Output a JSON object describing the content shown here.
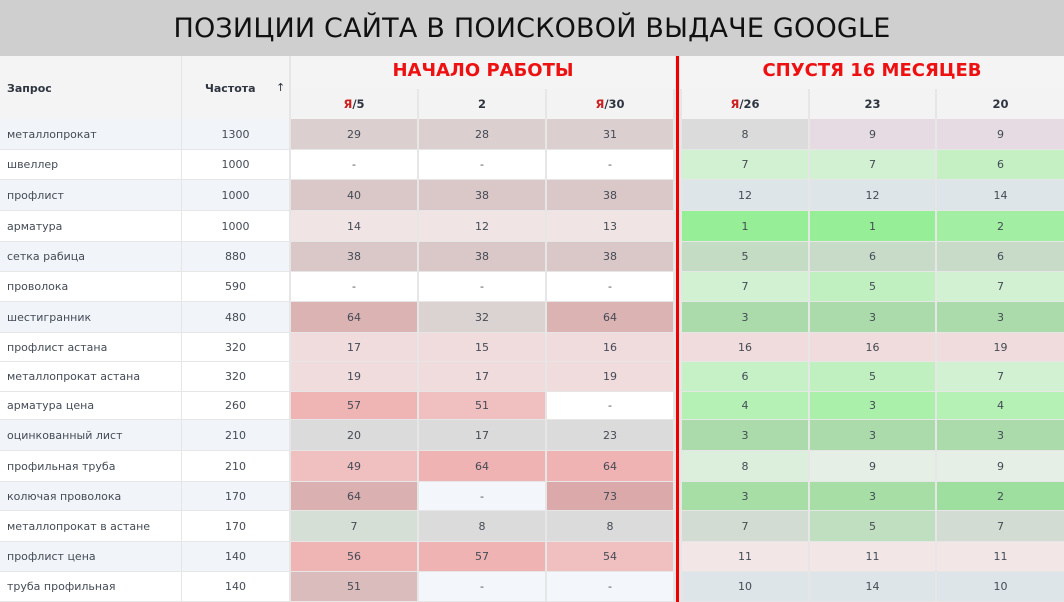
{
  "banner": {
    "title": "ПОЗИЦИИ САЙТА В ПОИСКОВОЙ ВЫДАЧЕ GOOGLE"
  },
  "table": {
    "headers": {
      "query": "Запрос",
      "frequency": "Частота",
      "sort_icon": "↑"
    },
    "sections": [
      {
        "title": "НАЧАЛО РАБОТЫ",
        "title_color": "#ee1111",
        "columns": [
          {
            "prefix": "Я",
            "label": "/5"
          },
          {
            "prefix": "",
            "label": "2"
          },
          {
            "prefix": "Я",
            "label": "/30"
          }
        ]
      },
      {
        "title": "СПУСТЯ 16 МЕСЯЦЕВ",
        "title_color": "#ee1111",
        "columns": [
          {
            "prefix": "Я",
            "label": "/26"
          },
          {
            "prefix": "",
            "label": "23"
          },
          {
            "prefix": "",
            "label": "20"
          }
        ]
      }
    ],
    "rows": [
      {
        "query": "металлопрокат",
        "freq": "1300",
        "before": [
          "29",
          "28",
          "31"
        ],
        "after": [
          "8",
          "9",
          "9"
        ]
      },
      {
        "query": "швеллер",
        "freq": "1000",
        "before": [
          "-",
          "-",
          "-"
        ],
        "after": [
          "7",
          "7",
          "6"
        ]
      },
      {
        "query": "профлист",
        "freq": "1000",
        "before": [
          "40",
          "38",
          "38"
        ],
        "after": [
          "12",
          "12",
          "14"
        ]
      },
      {
        "query": "арматура",
        "freq": "1000",
        "before": [
          "14",
          "12",
          "13"
        ],
        "after": [
          "1",
          "1",
          "2"
        ]
      },
      {
        "query": "сетка рабица",
        "freq": "880",
        "before": [
          "38",
          "38",
          "38"
        ],
        "after": [
          "5",
          "6",
          "6"
        ]
      },
      {
        "query": "проволока",
        "freq": "590",
        "before": [
          "-",
          "-",
          "-"
        ],
        "after": [
          "7",
          "5",
          "7"
        ]
      },
      {
        "query": "шестигранник",
        "freq": "480",
        "before": [
          "64",
          "32",
          "64"
        ],
        "after": [
          "3",
          "3",
          "3"
        ]
      },
      {
        "query": "профлист астана",
        "freq": "320",
        "before": [
          "17",
          "15",
          "16"
        ],
        "after": [
          "16",
          "16",
          "19"
        ]
      },
      {
        "query": "металлопрокат астана",
        "freq": "320",
        "before": [
          "19",
          "17",
          "19"
        ],
        "after": [
          "6",
          "5",
          "7"
        ]
      },
      {
        "query": "арматура цена",
        "freq": "260",
        "before": [
          "57",
          "51",
          "-"
        ],
        "after": [
          "4",
          "3",
          "4"
        ]
      },
      {
        "query": "оцинкованный лист",
        "freq": "210",
        "before": [
          "20",
          "17",
          "23"
        ],
        "after": [
          "3",
          "3",
          "3"
        ]
      },
      {
        "query": "профильная труба",
        "freq": "210",
        "before": [
          "49",
          "64",
          "64"
        ],
        "after": [
          "8",
          "9",
          "9"
        ]
      },
      {
        "query": "колючая проволока",
        "freq": "170",
        "before": [
          "64",
          "-",
          "73"
        ],
        "after": [
          "3",
          "3",
          "2"
        ]
      },
      {
        "query": "металлопрокат в астане",
        "freq": "170",
        "before": [
          "7",
          "8",
          "8"
        ],
        "after": [
          "7",
          "5",
          "7"
        ]
      },
      {
        "query": "профлист цена",
        "freq": "140",
        "before": [
          "56",
          "57",
          "54"
        ],
        "after": [
          "11",
          "11",
          "11"
        ]
      },
      {
        "query": "труба профильная",
        "freq": "140",
        "before": [
          "51",
          "-",
          "-"
        ],
        "after": [
          "10",
          "14",
          "10"
        ]
      }
    ]
  },
  "colors": {
    "row_alt": "#f1f5fa",
    "divider": "#ee0000",
    "before": [
      [
        "#dccfd0",
        "#dccfd0",
        "#dccfd0"
      ],
      [
        "#ffffff",
        "#ffffff",
        "#ffffff"
      ],
      [
        "#dac7c8",
        "#dac7c8",
        "#dac7c8"
      ],
      [
        "#f0e4e4",
        "#f0e4e4",
        "#f0e4e4"
      ],
      [
        "#dac7c8",
        "#dac7c8",
        "#dac7c8"
      ],
      [
        "#ffffff",
        "#ffffff",
        "#ffffff"
      ],
      [
        "#dbb3b3",
        "#dbd2d2",
        "#dbb3b3"
      ],
      [
        "#f0dcdd",
        "#f0dcdd",
        "#f0dcdd"
      ],
      [
        "#f0dcdd",
        "#f0dcdd",
        "#f0dcdd"
      ],
      [
        "#efb4b4",
        "#f0bfc0",
        "#ffffff"
      ],
      [
        "#dbdbdb",
        "#dbdbdb",
        "#dbdbdb"
      ],
      [
        "#f0c0c1",
        "#efb3b3",
        "#efb3b3"
      ],
      [
        "#dbb0b0",
        "#f3f6fa",
        "#dba9aa"
      ],
      [
        "#d5dfd5",
        "#dbdbdb",
        "#dbdbdb"
      ],
      [
        "#efb4b4",
        "#efb3b3",
        "#f0bfc0"
      ],
      [
        "#dbbcbd",
        "#f3f6fa",
        "#f3f6fa"
      ]
    ],
    "after": [
      [
        "#dbdbdb",
        "#e6dbe3",
        "#e6dbe3"
      ],
      [
        "#d2f0d2",
        "#d2f0d2",
        "#c4f0c4"
      ],
      [
        "#dde5e8",
        "#dde5e8",
        "#dde5e8"
      ],
      [
        "#96ee96",
        "#96ee96",
        "#a2eea2"
      ],
      [
        "#c4dcc4",
        "#c8dbc8",
        "#c8dbc8"
      ],
      [
        "#d2f0d2",
        "#c0f0c0",
        "#d2f0d2"
      ],
      [
        "#abdbab",
        "#abdbab",
        "#abdbab"
      ],
      [
        "#f0dcdd",
        "#f0dcdd",
        "#f0dcdd"
      ],
      [
        "#c6f0c6",
        "#c0f0c0",
        "#d2f0d2"
      ],
      [
        "#b5f0b5",
        "#aaf0aa",
        "#b5f0b5"
      ],
      [
        "#abdbab",
        "#abdbab",
        "#abdbab"
      ],
      [
        "#dcefdc",
        "#e5efe5",
        "#e5efe5"
      ],
      [
        "#a6dea6",
        "#a6dea6",
        "#9ede9e"
      ],
      [
        "#d2dcd2",
        "#c0dec0",
        "#d2dcd2"
      ],
      [
        "#f2e6e6",
        "#f2e6e6",
        "#f2e6e6"
      ],
      [
        "#dde5e8",
        "#dde5e8",
        "#dde5e8"
      ]
    ]
  }
}
